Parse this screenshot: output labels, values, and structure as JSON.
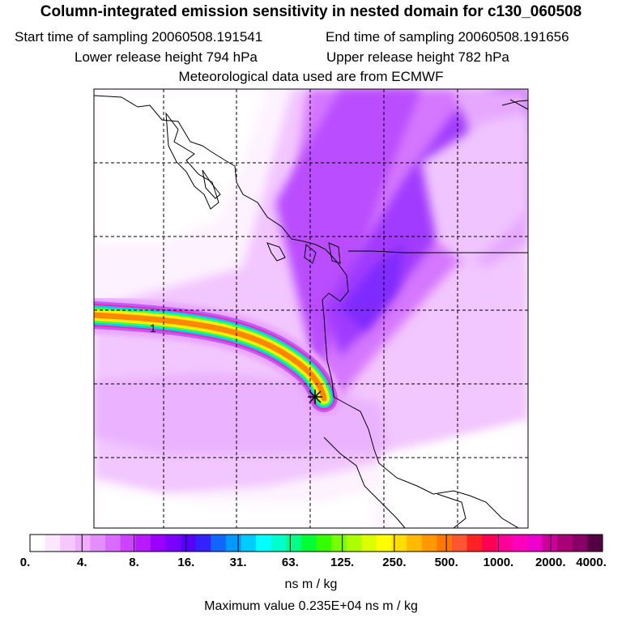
{
  "header": {
    "title": "Column-integrated emission sensitivity in nested domain for c130_060508",
    "start_label": "Start time of sampling 20060508.191541",
    "end_label": "End time of sampling 20060508.191656",
    "lower_label": "Lower release height  794 hPa",
    "upper_label": "Upper release height  782 hPa",
    "met_label": "Meteorological data used are from ECMWF"
  },
  "map": {
    "contour_level_label": "1",
    "release_marker_icon": "star-cross-icon"
  },
  "colorbar": {
    "tick_labels": [
      "0.",
      "4.",
      "8.",
      "16.",
      "31.",
      "63.",
      "125.",
      "250.",
      "500.",
      "1000.",
      "2000.",
      "4000."
    ],
    "colors": [
      "#ffffff",
      "#fbe8ff",
      "#f5c9ff",
      "#eeadff",
      "#e58cff",
      "#d96bff",
      "#cc44ff",
      "#b81aff",
      "#9900ff",
      "#7a00ff",
      "#5500ff",
      "#3322ff",
      "#1166ff",
      "#0099ff",
      "#00ccff",
      "#00ffff",
      "#00ffcc",
      "#00ff88",
      "#00ff33",
      "#33ff00",
      "#77ff00",
      "#aaff00",
      "#ddff00",
      "#ffff00",
      "#ffdd00",
      "#ffbb00",
      "#ff9900",
      "#ff7700",
      "#ff5533",
      "#ff2222",
      "#ff0055",
      "#ff0099",
      "#ff00bb",
      "#ee00cc",
      "#cc0099",
      "#aa0077",
      "#880066",
      "#550044"
    ],
    "unit": "ns m / kg"
  },
  "footer": {
    "max_value_label": "Maximum value  0.235E+04 ns m / kg"
  }
}
